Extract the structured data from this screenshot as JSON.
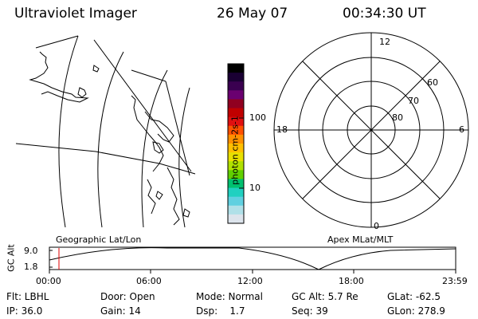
{
  "header": {
    "title": "Ultraviolet Imager",
    "date": "26 May 07",
    "time": "00:34:30 UT"
  },
  "colorbar": {
    "label": "photon cm-2s-1",
    "ticks": [
      "100",
      "10"
    ],
    "colors": [
      "#000000",
      "#1a0033",
      "#3a0050",
      "#6a0070",
      "#900020",
      "#c00000",
      "#e01010",
      "#ff5000",
      "#ff9000",
      "#ffc000",
      "#e8e000",
      "#b0e000",
      "#60d000",
      "#00c070",
      "#20d0c0",
      "#60d0e0",
      "#b0e0e8",
      "#dde4ec"
    ]
  },
  "geo_label": "Geographic Lat/Lon",
  "apex_label": "Apex MLat/MLT",
  "polar": {
    "mlt_labels": {
      "top": "12",
      "left": "18",
      "right": "6",
      "bottom": "0"
    },
    "lat_labels": [
      "60",
      "70",
      "80"
    ]
  },
  "altitude_plot": {
    "ylabel": "GC Alt",
    "yticks": [
      "9.0",
      "1.8"
    ],
    "xticks": [
      "00:00",
      "06:00",
      "12:00",
      "18:00",
      "23:59"
    ],
    "marker_time": "00:34:30"
  },
  "info": {
    "flt": "Flt: LBHL",
    "ip": "IP: 36.0",
    "door": "Door: Open",
    "gain": "Gain: 14",
    "mode": "Mode: Normal",
    "dsp": "Dsp:    1.7",
    "gcalt": "GC Alt: 5.7 Re",
    "seq": "Seq: 39",
    "glat": "GLat: -62.5",
    "glon": "GLon: 278.9"
  }
}
